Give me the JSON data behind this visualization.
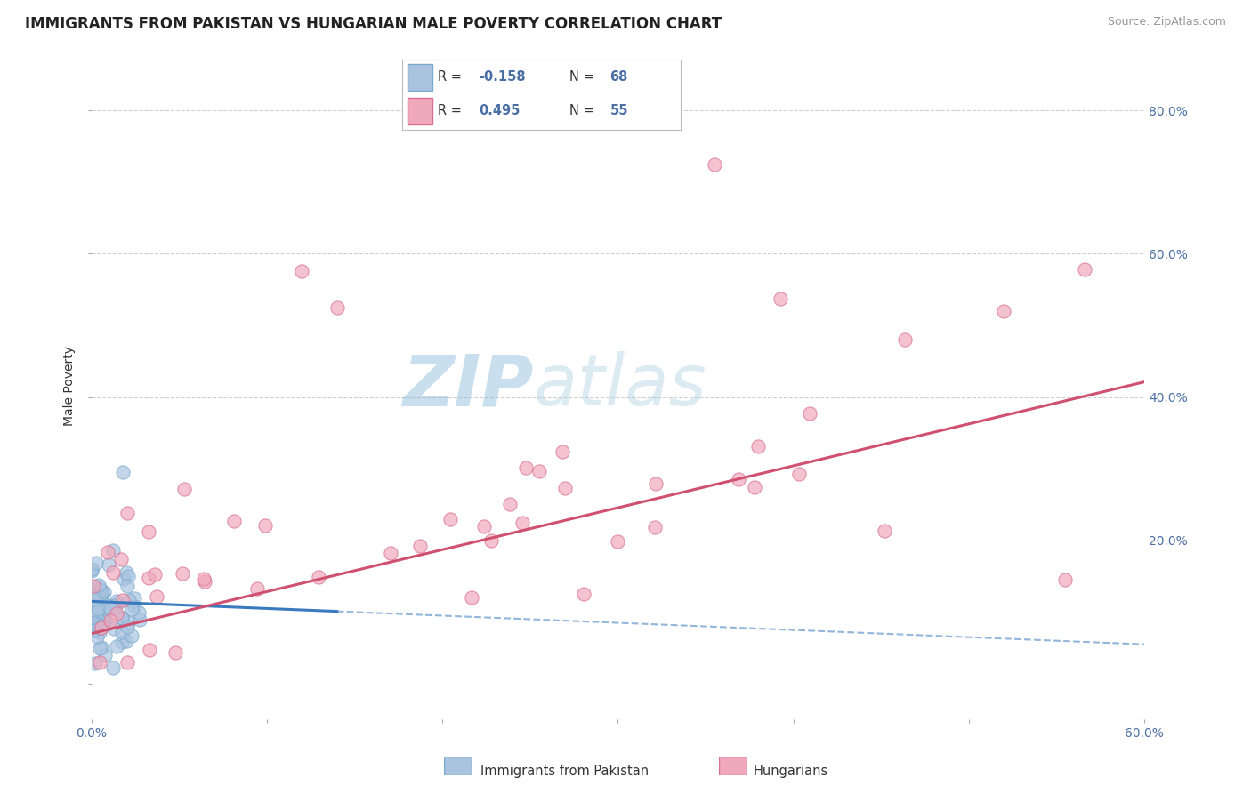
{
  "title": "IMMIGRANTS FROM PAKISTAN VS HUNGARIAN MALE POVERTY CORRELATION CHART",
  "source": "Source: ZipAtlas.com",
  "ylabel": "Male Poverty",
  "legend1_label": "Immigrants from Pakistan",
  "legend2_label": "Hungarians",
  "R1": "-0.158",
  "N1": "68",
  "R2": "0.495",
  "N2": "55",
  "blue_color": "#aac4e0",
  "blue_edge_color": "#7aaace",
  "pink_color": "#f0a8bc",
  "pink_edge_color": "#d87090",
  "blue_line_color": "#3a7abf",
  "pink_line_color": "#d05070",
  "watermark_zip": "#8ab0d0",
  "watermark_atlas": "#a0c4d8",
  "text_color": "#4a6fa5",
  "label_color": "#333333",
  "grid_color": "#d0d0d0",
  "xmin": 0.0,
  "xmax": 0.6,
  "ymin": -0.05,
  "ymax": 0.88
}
